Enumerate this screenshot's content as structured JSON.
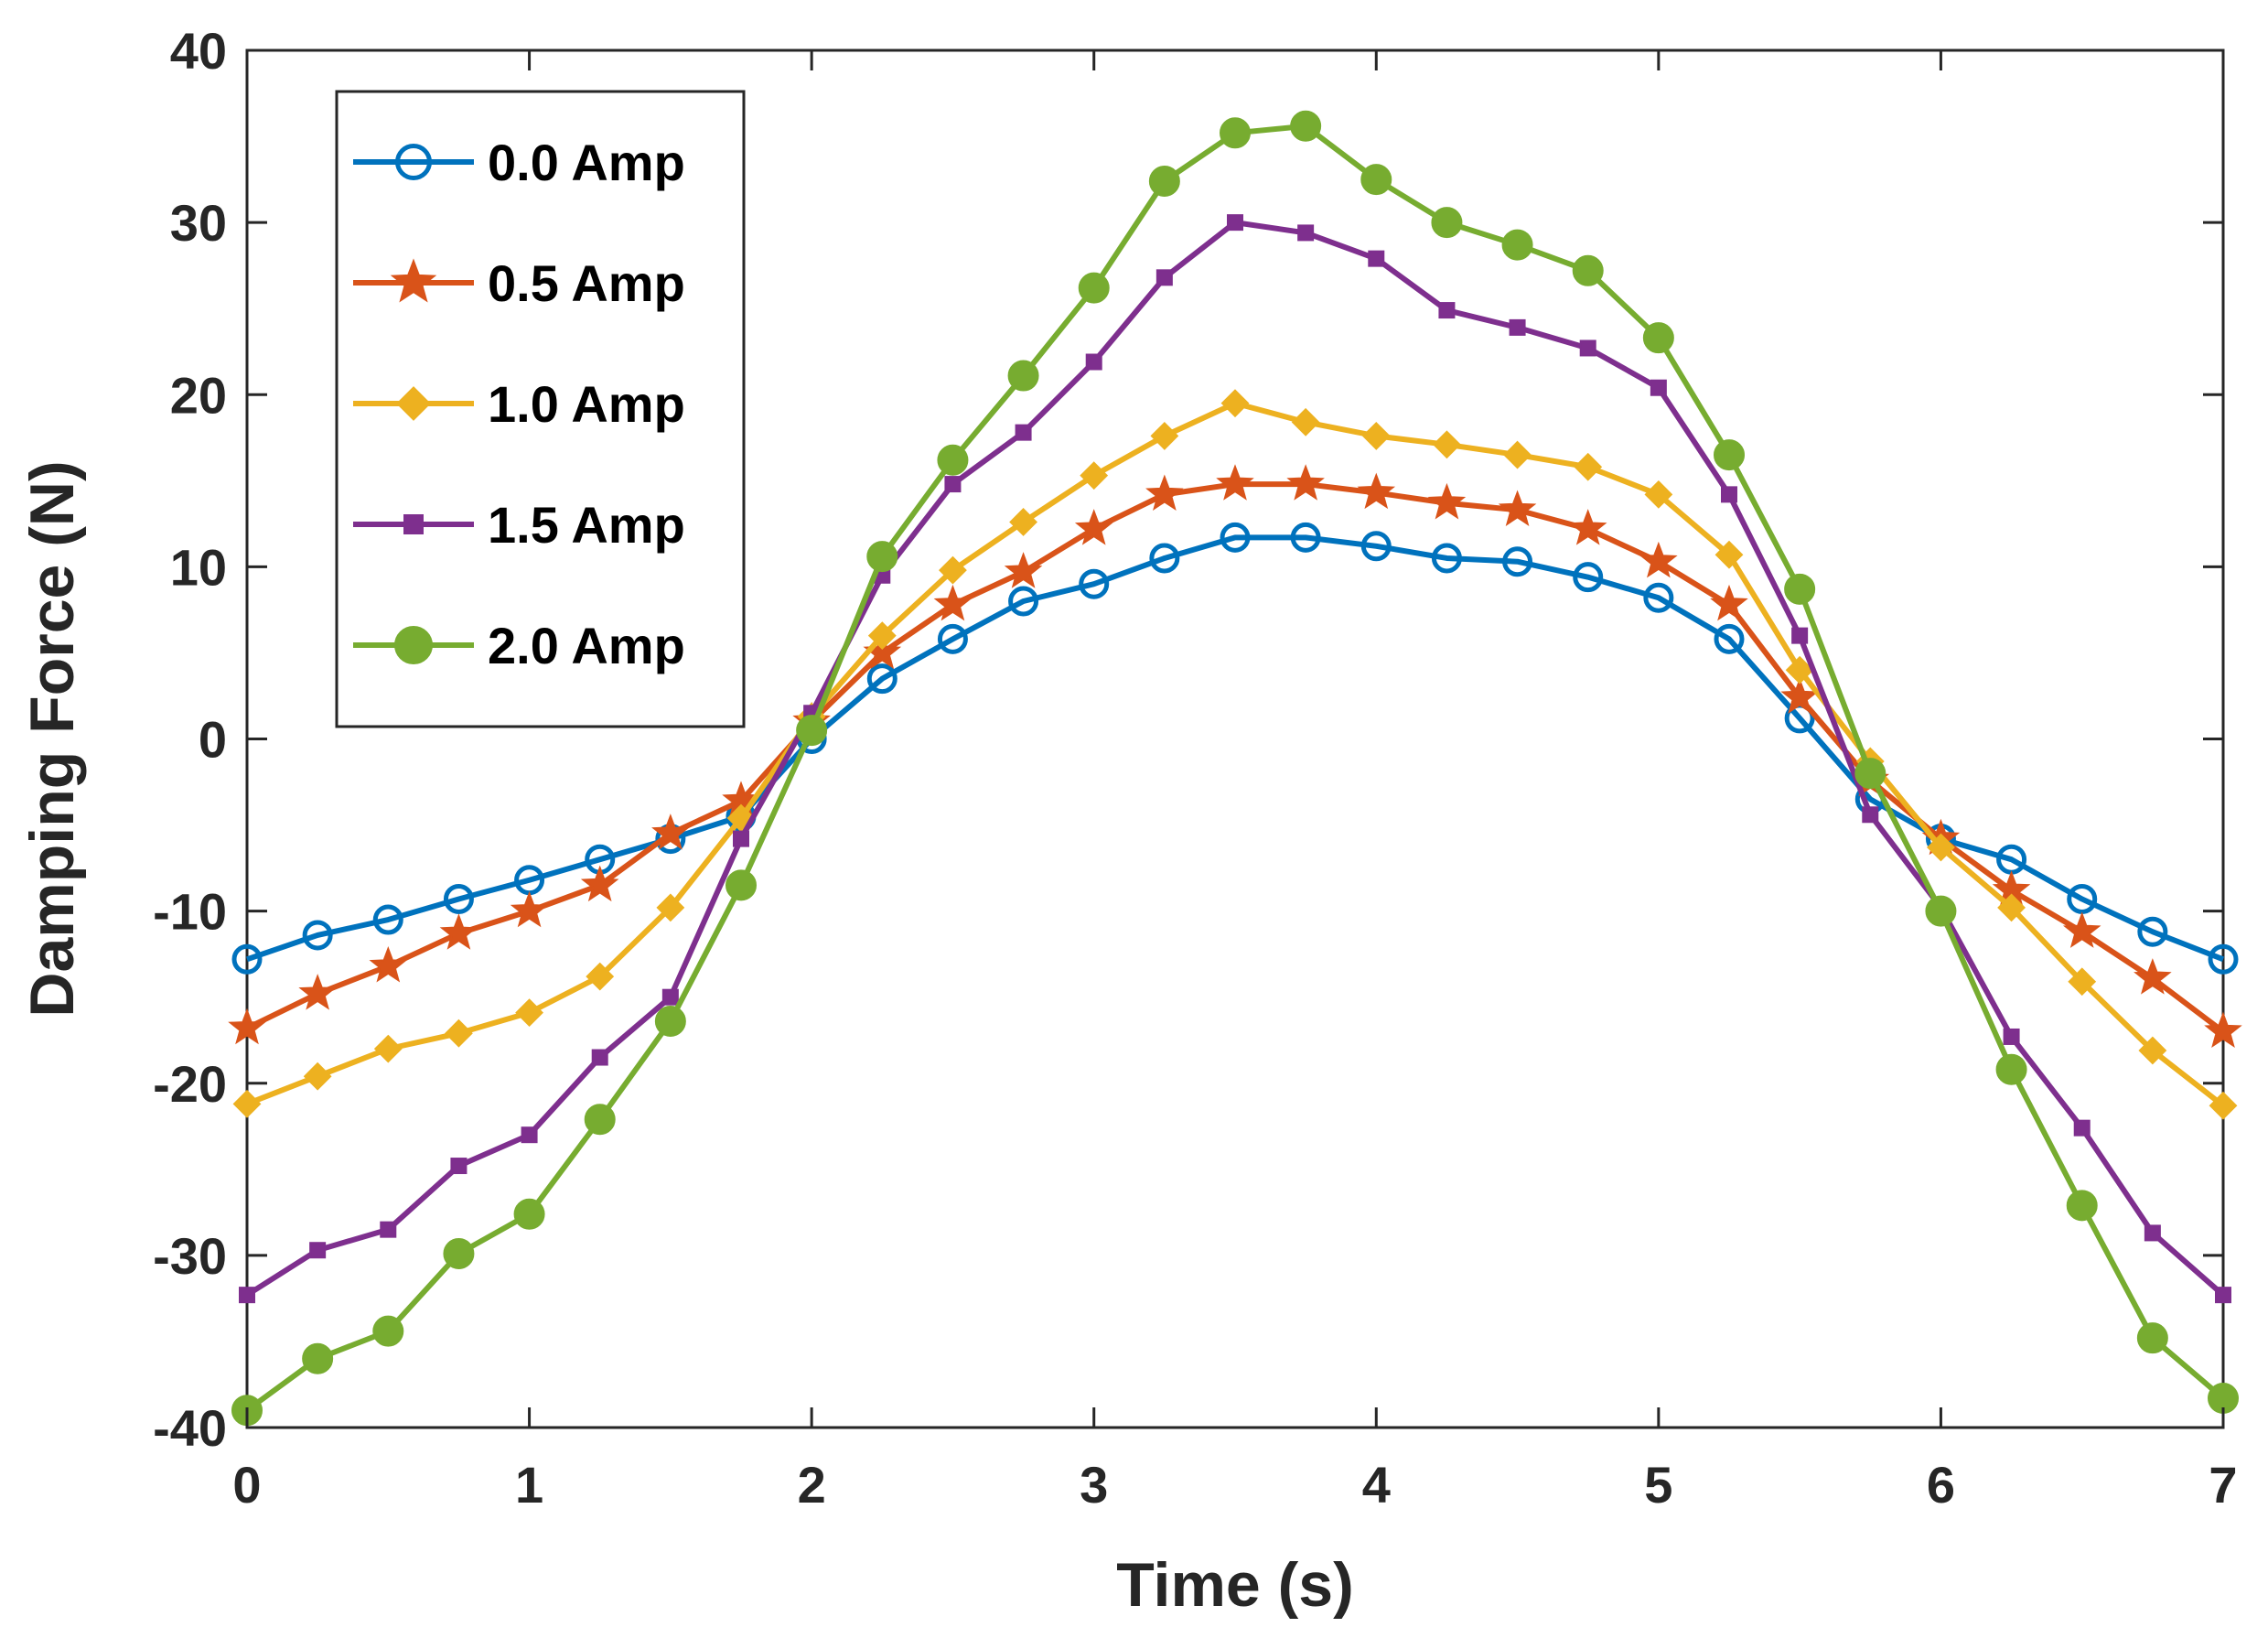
{
  "chart_data": {
    "type": "line",
    "title": "",
    "xlabel": "Time (s)",
    "ylabel": "Damping Force (N)",
    "xlim": [
      0,
      7
    ],
    "ylim": [
      -40,
      40
    ],
    "xticks": [
      0,
      1,
      2,
      3,
      4,
      5,
      6,
      7
    ],
    "yticks": [
      -40,
      -30,
      -20,
      -10,
      0,
      10,
      20,
      30,
      40
    ],
    "grid": false,
    "legend_position": "top-left",
    "x": [
      0,
      0.25,
      0.5,
      0.75,
      1,
      1.25,
      1.5,
      1.75,
      2,
      2.25,
      2.5,
      2.75,
      3,
      3.25,
      3.5,
      3.75,
      4,
      4.25,
      4.5,
      4.75,
      5,
      5.25,
      5.5,
      5.75,
      6,
      6.25,
      6.5,
      6.75,
      7
    ],
    "series": [
      {
        "name": "0.0 Amp",
        "color": "#0072BD",
        "marker": "circle-open",
        "values": [
          -12.8,
          -11.4,
          -10.5,
          -9.3,
          -8.2,
          -7,
          -5.8,
          -4.5,
          0,
          3.5,
          5.8,
          8,
          9,
          10.5,
          11.7,
          11.7,
          11.2,
          10.5,
          10.3,
          9.4,
          8.2,
          5.8,
          1.2,
          -3.5,
          -5.8,
          -7,
          -9.3,
          -11.2,
          -12.8
        ]
      },
      {
        "name": "0.5 Amp",
        "color": "#D95319",
        "marker": "star",
        "values": [
          -16.8,
          -14.8,
          -13.2,
          -11.3,
          -10,
          -8.5,
          -5.5,
          -3.6,
          1,
          5,
          7.8,
          9.7,
          12.2,
          14.2,
          14.8,
          14.8,
          14.3,
          13.7,
          13.3,
          12.2,
          10.3,
          7.8,
          2.4,
          -2.4,
          -5.8,
          -8.8,
          -11.2,
          -13.9,
          -17
        ]
      },
      {
        "name": "1.0 Amp",
        "color": "#EDB120",
        "marker": "diamond",
        "values": [
          -21.2,
          -19.6,
          -18,
          -17.1,
          -15.9,
          -13.8,
          -9.8,
          -4.6,
          1.3,
          6,
          9.8,
          12.6,
          15.3,
          17.6,
          19.5,
          18.4,
          17.6,
          17.1,
          16.5,
          15.8,
          14.2,
          10.7,
          4,
          -1.3,
          -6.3,
          -9.8,
          -14.1,
          -18.1,
          -21.3
        ]
      },
      {
        "name": "1.5 Amp",
        "color": "#7E2F8E",
        "marker": "square",
        "values": [
          -32.3,
          -29.7,
          -28.5,
          -24.8,
          -23,
          -18.5,
          -15,
          -5.8,
          1.5,
          9.5,
          14.8,
          17.8,
          21.9,
          26.8,
          30,
          29.4,
          27.9,
          24.9,
          23.9,
          22.7,
          20.4,
          14.2,
          6,
          -4.4,
          -9.8,
          -17.3,
          -22.6,
          -28.7,
          -32.3
        ]
      },
      {
        "name": "2.0 Amp",
        "color": "#77AC30",
        "marker": "circle-filled",
        "values": [
          -39,
          -36,
          -34.4,
          -29.9,
          -27.6,
          -22.1,
          -16.4,
          -8.5,
          0.5,
          10.6,
          16.2,
          21.1,
          26.2,
          32.4,
          35.2,
          35.6,
          32.5,
          30,
          28.7,
          27.2,
          23.3,
          16.5,
          8.7,
          -2,
          -10,
          -19.2,
          -27.1,
          -34.8,
          -38.3
        ]
      }
    ]
  }
}
